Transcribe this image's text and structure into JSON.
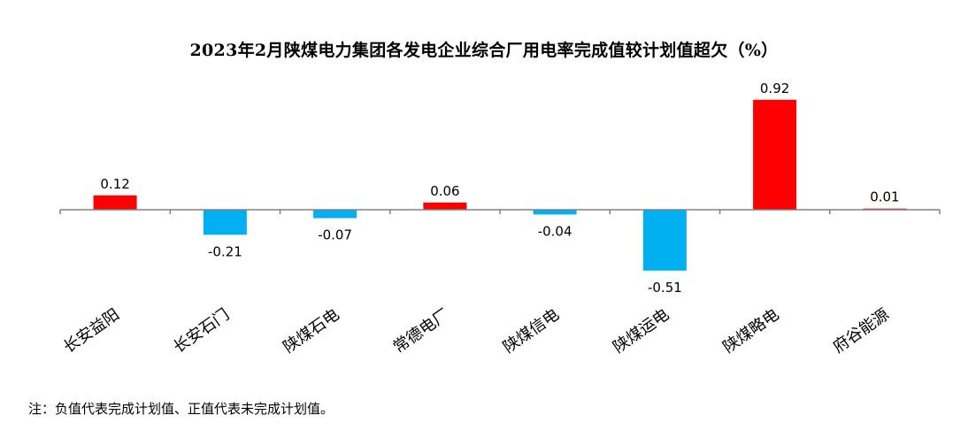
{
  "chart_data": {
    "type": "bar",
    "title": "2023年2月陕煤电力集团各发电企业综合厂用电率完成值较计划值超欠（%）",
    "categories": [
      "长安益阳",
      "长安石门",
      "陕煤石电",
      "常德电厂",
      "陕煤信电",
      "陕煤运电",
      "陕煤略电",
      "府谷能源"
    ],
    "values": [
      0.12,
      -0.21,
      -0.07,
      0.06,
      -0.04,
      -0.51,
      0.92,
      0.01
    ],
    "data_labels": [
      "0.12",
      "-0.21",
      "-0.07",
      "0.06",
      "-0.04",
      "-0.51",
      "0.92",
      "0.01"
    ],
    "xlabel": "",
    "ylabel": "",
    "ylim": [
      -0.51,
      0.92
    ],
    "grid": false,
    "legend": "none",
    "colors": {
      "positive": "#ff0000",
      "negative": "#00b0f0",
      "axis": "#808080"
    },
    "note": "注：负值代表完成计划值、正值代表未完成计划值。"
  }
}
